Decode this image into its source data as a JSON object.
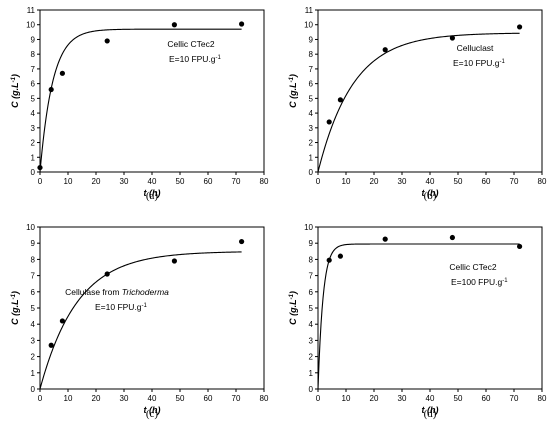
{
  "chart_data": [
    {
      "type": "scatter",
      "panel_caption": "(a)",
      "xlabel": "t (h)",
      "ylabel": "C (g.L-1)",
      "xlim": [
        0,
        80
      ],
      "ylim": [
        0,
        11
      ],
      "x_ticks": [
        0,
        10,
        20,
        30,
        40,
        50,
        60,
        70,
        80
      ],
      "y_ticks": [
        0,
        1,
        2,
        3,
        4,
        5,
        6,
        7,
        8,
        9,
        10,
        11
      ],
      "grid": false,
      "annotation_line1": "Cellic CTec2",
      "annotation_line2": "E=10 FPU.g-1",
      "series": [
        {
          "kind": "points",
          "x": [
            0,
            4,
            8,
            24,
            48,
            72
          ],
          "y": [
            0.3,
            5.6,
            6.7,
            8.9,
            10.0,
            10.05
          ]
        },
        {
          "kind": "fit",
          "model": "C = Cmax(1 - exp(-k t))",
          "Cmax": 9.7,
          "k": 0.22
        }
      ]
    },
    {
      "type": "scatter",
      "panel_caption": "(b)",
      "xlabel": "t (h)",
      "ylabel": "C (g.L-1)",
      "xlim": [
        0,
        80
      ],
      "ylim": [
        0,
        11
      ],
      "x_ticks": [
        0,
        10,
        20,
        30,
        40,
        50,
        60,
        70,
        80
      ],
      "y_ticks": [
        0,
        1,
        2,
        3,
        4,
        5,
        6,
        7,
        8,
        9,
        10,
        11
      ],
      "grid": false,
      "annotation_line1": "Celluclast",
      "annotation_line2": "E=10 FPU.g-1",
      "series": [
        {
          "kind": "points",
          "x": [
            4,
            8,
            24,
            48,
            72
          ],
          "y": [
            3.4,
            4.9,
            8.3,
            9.1,
            9.85
          ]
        },
        {
          "kind": "fit",
          "model": "C = Cmax(1 - exp(-k t))",
          "Cmax": 9.45,
          "k": 0.08
        }
      ]
    },
    {
      "type": "scatter",
      "panel_caption": "(c)",
      "xlabel": "t (h)",
      "ylabel": "C (g.L-1)",
      "xlim": [
        0,
        80
      ],
      "ylim": [
        0,
        10
      ],
      "x_ticks": [
        0,
        10,
        20,
        30,
        40,
        50,
        60,
        70,
        80
      ],
      "y_ticks": [
        0,
        1,
        2,
        3,
        4,
        5,
        6,
        7,
        8,
        9,
        10
      ],
      "grid": false,
      "annotation_line1_prefix": "Cellulase from ",
      "annotation_line1_italic": "Trichoderma",
      "annotation_line2": "E=10 FPU.g-1",
      "series": [
        {
          "kind": "points",
          "x": [
            4,
            8,
            24,
            48,
            72
          ],
          "y": [
            2.7,
            4.2,
            7.1,
            7.9,
            9.1
          ]
        },
        {
          "kind": "fit",
          "model": "C = Cmax(1 - exp(-k t))",
          "Cmax": 8.5,
          "k": 0.075
        }
      ]
    },
    {
      "type": "scatter",
      "panel_caption": "(d)",
      "xlabel": "t (h)",
      "ylabel": "C (g.L-1)",
      "xlim": [
        0,
        80
      ],
      "ylim": [
        0,
        10
      ],
      "x_ticks": [
        0,
        10,
        20,
        30,
        40,
        50,
        60,
        70,
        80
      ],
      "y_ticks": [
        0,
        1,
        2,
        3,
        4,
        5,
        6,
        7,
        8,
        9,
        10
      ],
      "grid": false,
      "annotation_line1": "Cellic CTec2",
      "annotation_line2": "E=100 FPU.g-1",
      "series": [
        {
          "kind": "points",
          "x": [
            4,
            8,
            24,
            48,
            72
          ],
          "y": [
            7.95,
            8.2,
            9.25,
            9.35,
            8.8
          ]
        },
        {
          "kind": "fit",
          "model": "C = Cmax(1 - exp(-k t))",
          "Cmax": 8.95,
          "k": 0.55
        }
      ]
    }
  ]
}
